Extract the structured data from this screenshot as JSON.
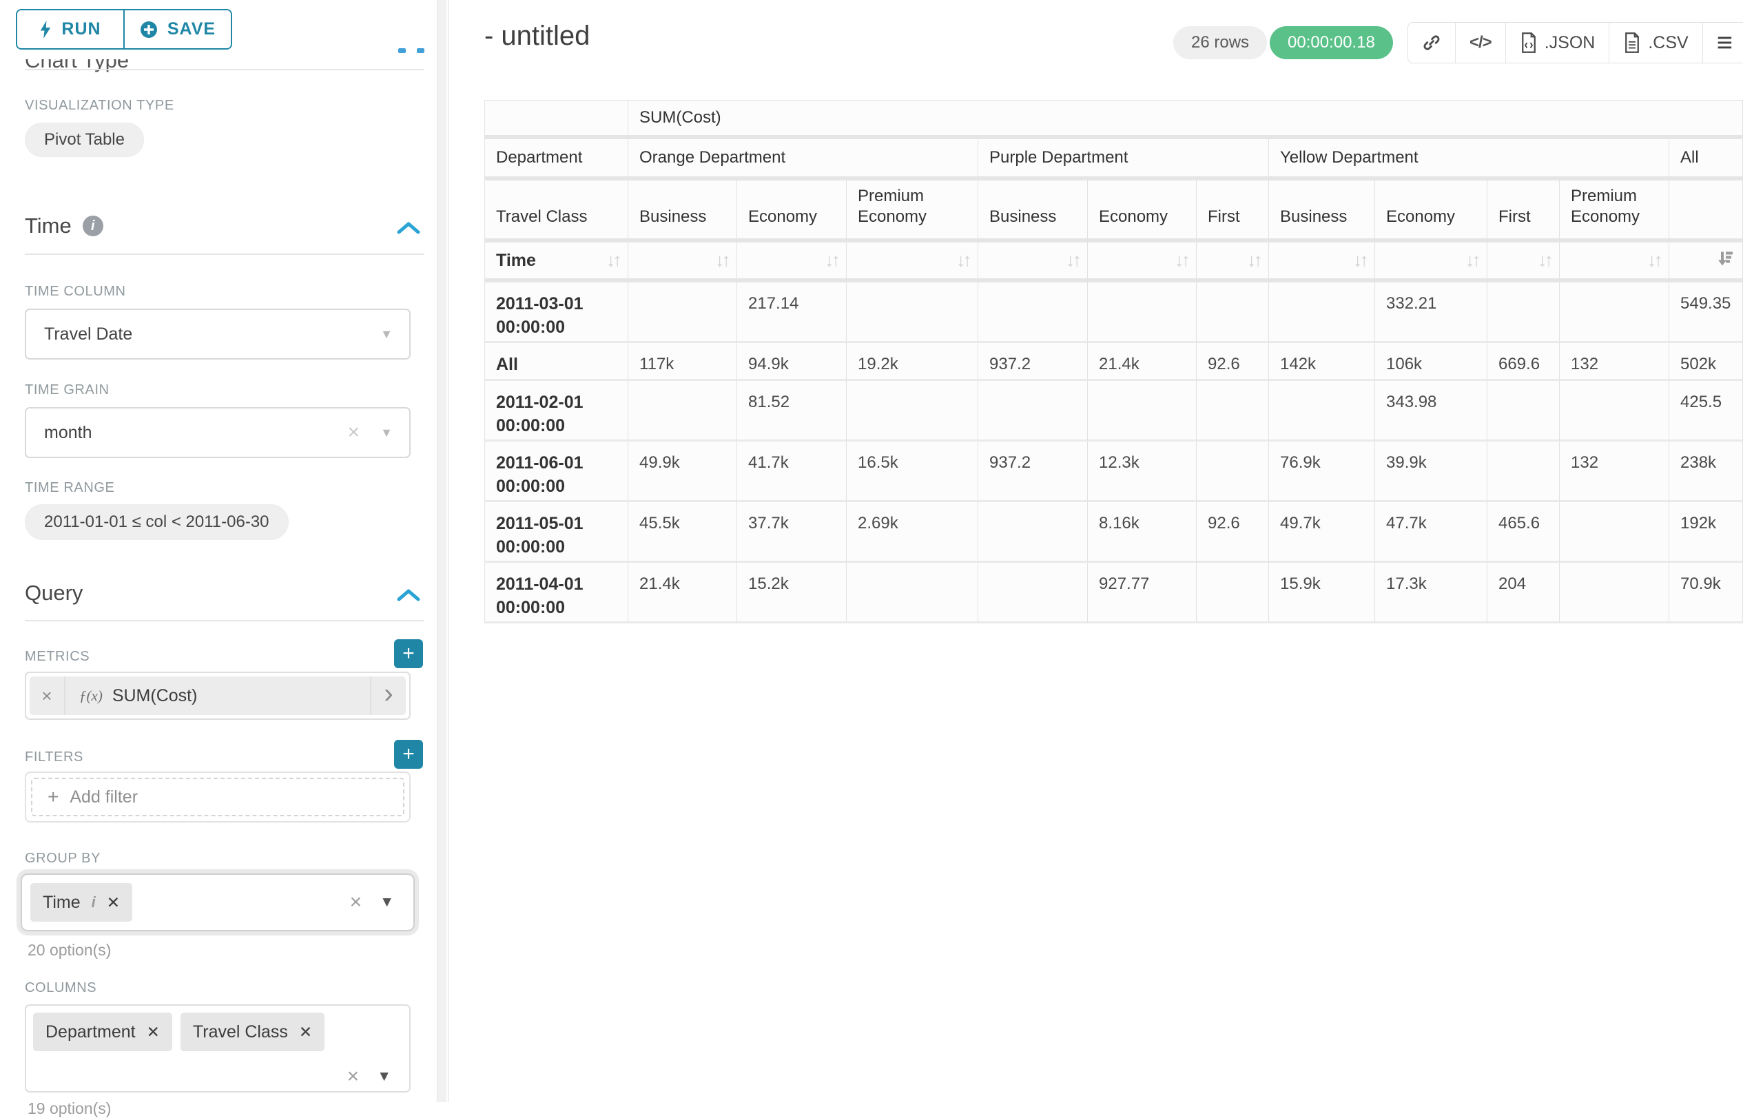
{
  "sidebar": {
    "run_label": "RUN",
    "save_label": "SAVE",
    "chart_type_heading": "Chart Type",
    "viz_type_label": "VISUALIZATION TYPE",
    "viz_type_value": "Pivot Table",
    "time": {
      "title": "Time",
      "time_column_label": "TIME COLUMN",
      "time_column_value": "Travel Date",
      "time_grain_label": "TIME GRAIN",
      "time_grain_value": "month",
      "time_range_label": "TIME RANGE",
      "time_range_value": "2011-01-01 ≤ col < 2011-06-30"
    },
    "query": {
      "title": "Query",
      "metrics_label": "METRICS",
      "metric_fx": "ƒ(x)",
      "metric_value": "SUM(Cost)",
      "filters_label": "FILTERS",
      "add_filter_label": "Add filter",
      "group_by_label": "GROUP BY",
      "group_by_chip": "Time",
      "group_by_options": "20 option(s)",
      "columns_label": "COLUMNS",
      "columns_chip_1": "Department",
      "columns_chip_2": "Travel Class",
      "columns_options": "19 option(s)"
    }
  },
  "header": {
    "title": "- untitled",
    "row_count": "26 rows",
    "duration": "00:00:00.18",
    "export_json_label": ".JSON",
    "export_csv_label": ".CSV"
  },
  "icons": {
    "sort": "↓↑",
    "caret_down": "▼",
    "clear": "×",
    "chip_remove": "✕",
    "chevron_right": "›",
    "menu": "≡",
    "code": "</>",
    "plus": "+",
    "info": "i"
  },
  "pivot": {
    "metric_header": "SUM(Cost)",
    "corner_label": "Department",
    "row_dim_label": "Travel Class",
    "time_label": "Time",
    "groups": [
      {
        "label": "Orange Department",
        "cols": [
          "Business",
          "Economy",
          "Premium Economy"
        ]
      },
      {
        "label": "Purple Department",
        "cols": [
          "Business",
          "Economy",
          "First"
        ]
      },
      {
        "label": "Yellow Department",
        "cols": [
          "Business",
          "Economy",
          "First",
          "Premium Economy"
        ]
      },
      {
        "label": "All",
        "cols": [
          ""
        ]
      }
    ],
    "rows": [
      {
        "label": "2011-03-01 00:00:00",
        "values": [
          "",
          "217.14",
          "",
          "",
          "",
          "",
          "",
          "332.21",
          "",
          "",
          "549.35"
        ]
      },
      {
        "label": "All",
        "values": [
          "117k",
          "94.9k",
          "19.2k",
          "937.2",
          "21.4k",
          "92.6",
          "142k",
          "106k",
          "669.6",
          "132",
          "502k"
        ]
      },
      {
        "label": "2011-02-01 00:00:00",
        "values": [
          "",
          "81.52",
          "",
          "",
          "",
          "",
          "",
          "343.98",
          "",
          "",
          "425.5"
        ]
      },
      {
        "label": "2011-06-01 00:00:00",
        "values": [
          "49.9k",
          "41.7k",
          "16.5k",
          "937.2",
          "12.3k",
          "",
          "76.9k",
          "39.9k",
          "",
          "132",
          "238k"
        ]
      },
      {
        "label": "2011-05-01 00:00:00",
        "values": [
          "45.5k",
          "37.7k",
          "2.69k",
          "",
          "8.16k",
          "92.6",
          "49.7k",
          "47.7k",
          "465.6",
          "",
          "192k"
        ]
      },
      {
        "label": "2011-04-01 00:00:00",
        "values": [
          "21.4k",
          "15.2k",
          "",
          "",
          "927.77",
          "",
          "15.9k",
          "17.3k",
          "204",
          "",
          "70.9k"
        ]
      }
    ]
  }
}
